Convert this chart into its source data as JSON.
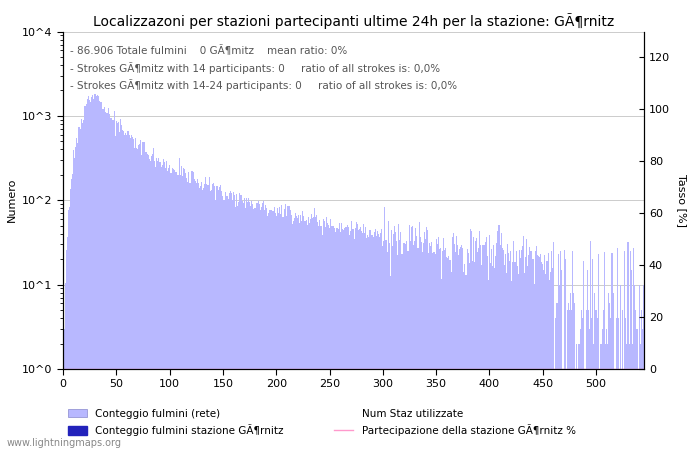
{
  "title": "Localizzazoni per stazioni partecipanti ultime 24h per la stazione: GÃ¶rnitz",
  "ylabel_left": "Numero",
  "ylabel_right": "Tasso [%]",
  "annotation_lines": [
    "86.906 Totale fulmini    0 GÃ¶mitz    mean ratio: 0%",
    "Strokes GÃ¶mitz with 14 participants: 0     ratio of all strokes is: 0,0%",
    "Strokes GÃ¶mitz with 14-24 participants: 0     ratio of all strokes is: 0,0%"
  ],
  "bar_color": "#b8b8ff",
  "station_bar_color": "#2222bb",
  "line_color": "#ff99cc",
  "watermark": "www.lightningmaps.org",
  "legend_entries": [
    "Conteggio fulmini (rete)",
    "Conteggio fulmini stazione GÃ¶rnitz",
    "Num Staz utilizzate",
    "Partecipazione della stazione GÃ¶rnitz %"
  ],
  "x_max": 545,
  "y_log_min": 1,
  "y_log_max": 10000,
  "y_right_max": 130,
  "y_right_ticks": [
    0,
    20,
    40,
    60,
    80,
    100,
    120
  ],
  "x_ticks": [
    0,
    50,
    100,
    150,
    200,
    250,
    300,
    350,
    400,
    450,
    500
  ],
  "y_ticks": [
    1,
    10,
    100,
    1000,
    10000
  ],
  "y_tick_labels": [
    "10^0",
    "10^1",
    "10^2",
    "10^3",
    "10^4"
  ],
  "grid_color": "#cccccc",
  "background_color": "#ffffff",
  "title_fontsize": 10,
  "annotation_fontsize": 7.5,
  "axis_fontsize": 8,
  "tick_fontsize": 8,
  "peak_station": 28,
  "peak_value": 2200,
  "n_stations": 545,
  "random_seed": 12
}
